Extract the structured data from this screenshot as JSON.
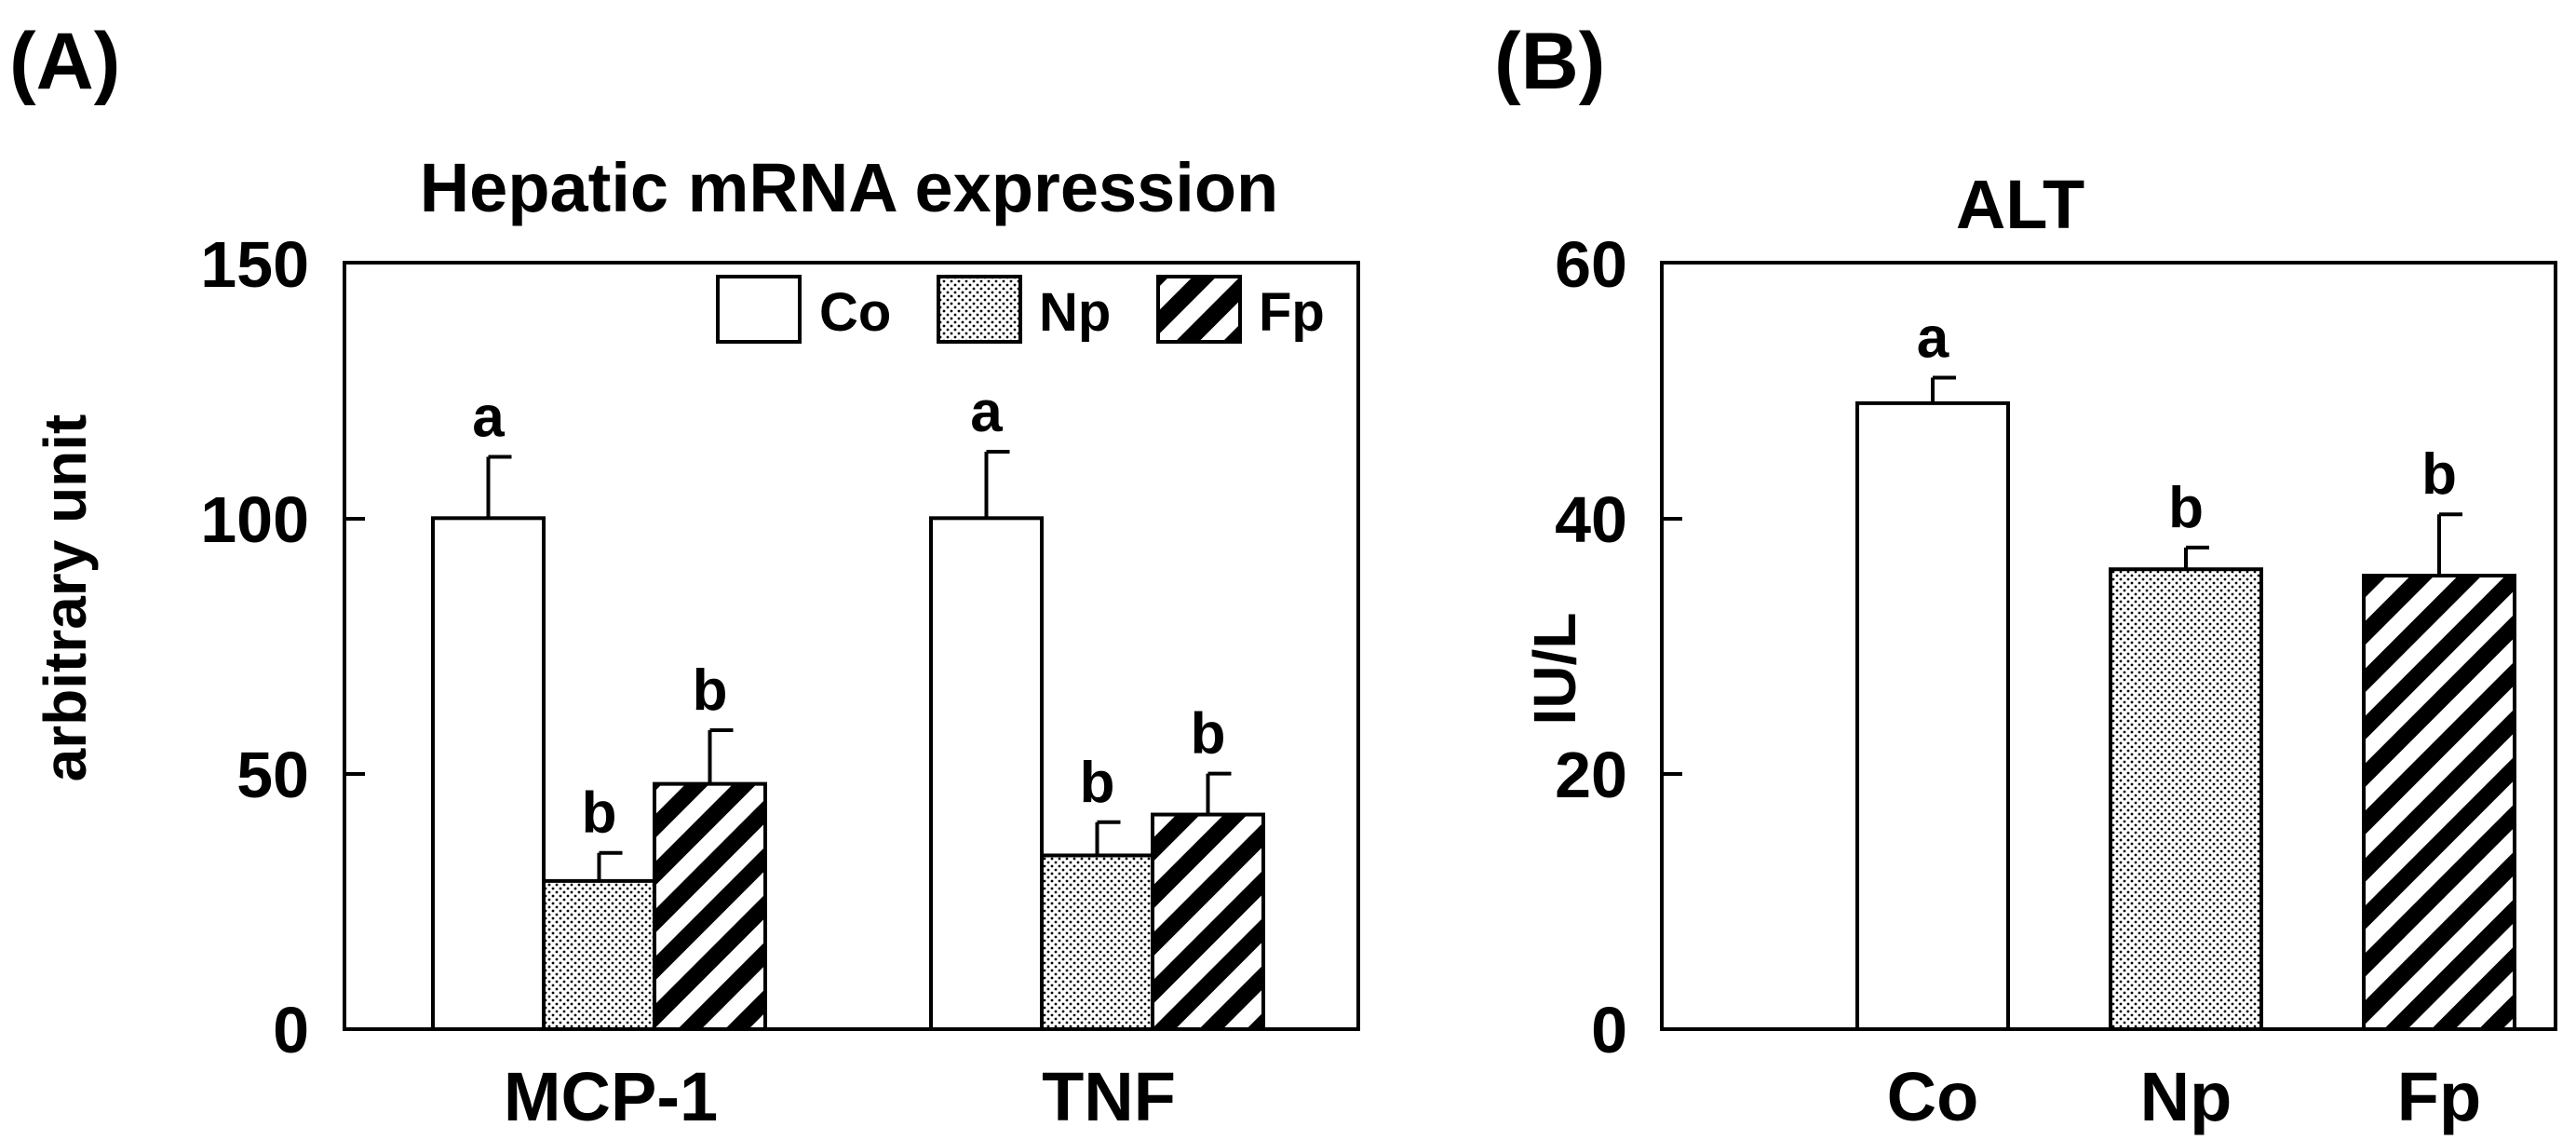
{
  "chart_data": [
    {
      "type": "bar",
      "panel_label": "(A)",
      "title": "Hepatic mRNA expression",
      "xlabel": "",
      "ylabel": "arbitrary unit",
      "ylim": [
        0,
        150
      ],
      "yticks": [
        0,
        50,
        100,
        150
      ],
      "categories": [
        "MCP-1",
        "TNF"
      ],
      "series": [
        {
          "name": "Co",
          "fill": "white",
          "values": [
            100,
            100
          ],
          "errors": [
            12,
            13
          ],
          "labels": [
            "a",
            "a"
          ]
        },
        {
          "name": "Np",
          "fill": "dots",
          "values": [
            29,
            34
          ],
          "errors": [
            5.5,
            6.5
          ],
          "labels": [
            "b",
            "b"
          ]
        },
        {
          "name": "Fp",
          "fill": "hatch",
          "values": [
            48,
            42
          ],
          "errors": [
            10.5,
            8
          ],
          "labels": [
            "b",
            "b"
          ]
        }
      ],
      "legend": [
        "Co",
        "Np",
        "Fp"
      ],
      "legend_position": "top-right"
    },
    {
      "type": "bar",
      "panel_label": "(B)",
      "title": "ALT",
      "xlabel": "",
      "ylabel": "IU/L",
      "ylim": [
        0,
        60
      ],
      "yticks": [
        0,
        20,
        40,
        60
      ],
      "categories": [
        "Co",
        "Np",
        "Fp"
      ],
      "series": [
        {
          "name": "ALT",
          "fills": [
            "white",
            "dots",
            "hatch"
          ],
          "values": [
            49,
            36,
            35.5
          ],
          "errors": [
            2,
            1.7,
            4.8
          ],
          "labels": [
            "a",
            "b",
            "b"
          ]
        }
      ]
    }
  ]
}
